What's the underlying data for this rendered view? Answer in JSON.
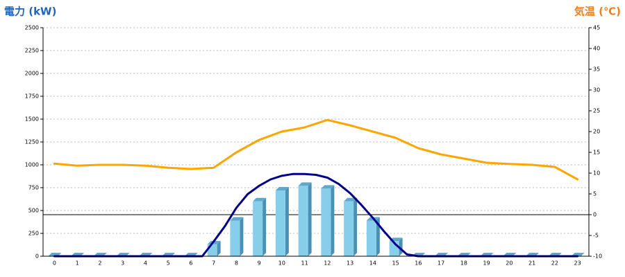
{
  "chart_data": {
    "type": "combo",
    "y_title": "電力 (kW)",
    "y2_title": "気温 (℃)",
    "categories": [
      "0",
      "1",
      "2",
      "3",
      "4",
      "5",
      "6",
      "7",
      "8",
      "9",
      "10",
      "11",
      "12",
      "13",
      "14",
      "15",
      "16",
      "17",
      "18",
      "19",
      "20",
      "21",
      "22",
      "23"
    ],
    "series": [
      {
        "type": "bar",
        "axis": "y",
        "color": "#87ceeb",
        "values": [
          0,
          0,
          0,
          0,
          0,
          0,
          0,
          130,
          390,
          600,
          720,
          770,
          740,
          600,
          390,
          165,
          0,
          0,
          0,
          0,
          0,
          0,
          0,
          0
        ]
      },
      {
        "type": "line",
        "axis": "y",
        "color": "#00008b",
        "x": [
          0,
          0.5,
          1,
          1.5,
          2,
          2.5,
          3,
          3.5,
          4,
          4.5,
          5,
          5.5,
          6,
          6.5,
          7,
          7.5,
          8,
          8.5,
          9,
          9.5,
          10,
          10.5,
          11,
          11.5,
          12,
          12.5,
          13,
          13.5,
          14,
          14.5,
          15,
          15.5,
          16,
          16.5,
          17,
          17.5,
          18,
          18.5,
          19,
          19.5,
          20,
          20.5,
          21,
          21.5,
          22,
          22.5,
          23
        ],
        "values": [
          0,
          0,
          0,
          0,
          0,
          0,
          0,
          0,
          0,
          0,
          0,
          0,
          0,
          0,
          160,
          330,
          530,
          680,
          770,
          840,
          880,
          900,
          900,
          890,
          860,
          790,
          690,
          560,
          420,
          270,
          130,
          20,
          0,
          0,
          0,
          0,
          0,
          0,
          0,
          0,
          0,
          0,
          0,
          0,
          0,
          0,
          0
        ]
      },
      {
        "type": "line",
        "axis": "y2",
        "color": "#ffa500",
        "values": [
          12.3,
          11.8,
          12,
          12,
          11.8,
          11.3,
          11,
          11.3,
          15,
          18,
          20,
          21,
          22.8,
          21.5,
          20,
          18.5,
          16,
          14.5,
          13.5,
          12.5,
          12.2,
          12,
          11.5,
          8.5
        ]
      }
    ],
    "ylim": [
      0,
      2500
    ],
    "yticks": [
      0,
      250,
      500,
      750,
      1000,
      1250,
      1500,
      1750,
      2000,
      2250,
      2500
    ],
    "y2lim": [
      -10,
      45
    ],
    "y2ticks": [
      -10,
      -5,
      0,
      5,
      10,
      15,
      20,
      25,
      30,
      35,
      40,
      45
    ],
    "grid": true,
    "y2_zero_line": true
  }
}
